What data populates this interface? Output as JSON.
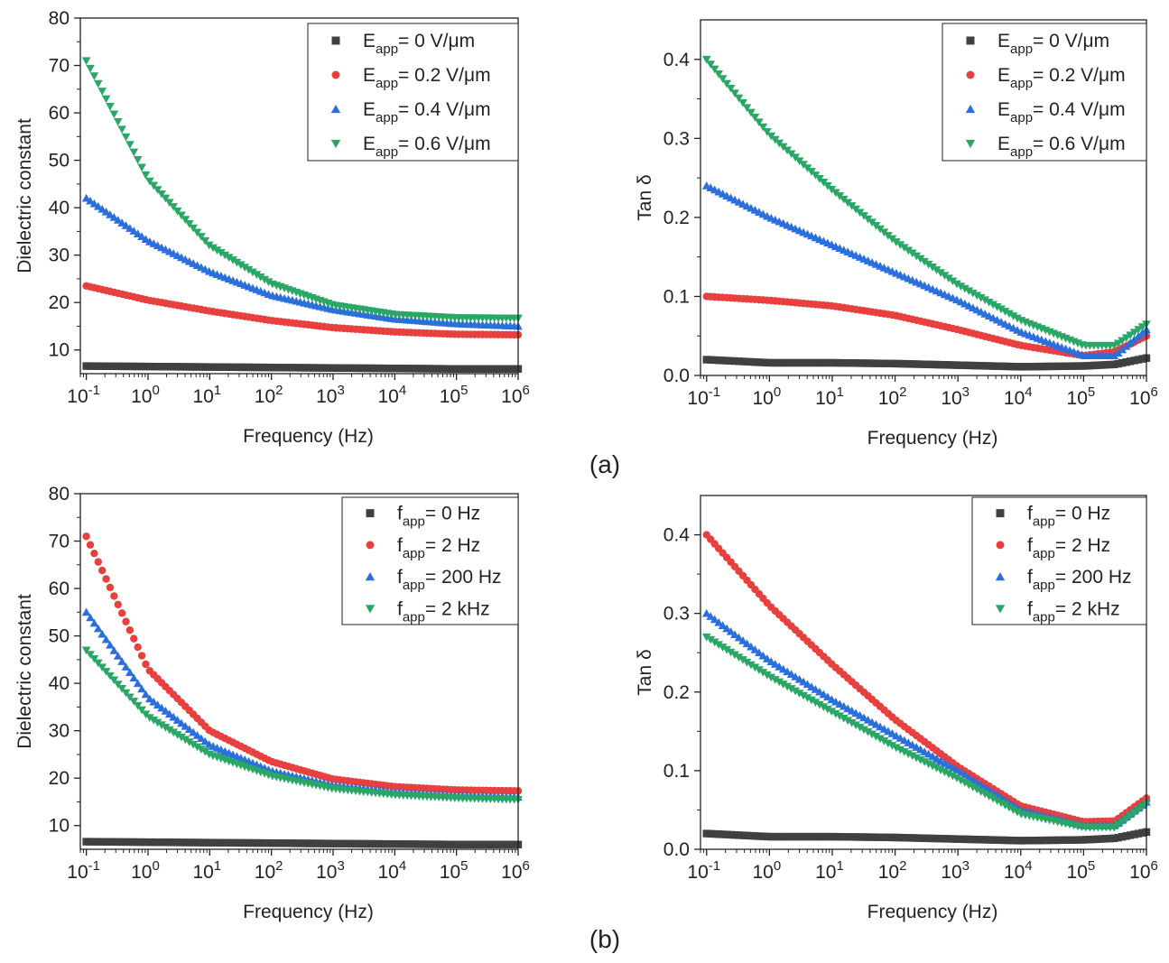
{
  "panel_labels": [
    "(a)",
    "(b)"
  ],
  "chart_data": [
    {
      "id": "a-dielectric",
      "type": "scatter",
      "xscale": "log",
      "xlabel": "Frequency (Hz)",
      "ylabel": "Dielectric constant",
      "xlim": [
        0.08,
        1000000
      ],
      "ylim": [
        5,
        80
      ],
      "xticks": [
        0.1,
        1,
        10,
        100,
        1000,
        10000,
        100000,
        1000000
      ],
      "xtick_labels": [
        "10-1",
        "100",
        "101",
        "102",
        "103",
        "104",
        "105",
        "106"
      ],
      "yticks": [
        10,
        20,
        30,
        40,
        50,
        60,
        70,
        80
      ],
      "ytick_labels": [
        "10",
        "20",
        "30",
        "40",
        "50",
        "60",
        "70",
        "80"
      ],
      "legend_position": "top-right",
      "series": [
        {
          "name": "Eapp= 0 V/μm",
          "legend_main": "E",
          "legend_sub": "app",
          "legend_rest": "= 0 V/μm",
          "marker": "square",
          "color": "#404040",
          "x": [
            0.1,
            1,
            10,
            100,
            1000,
            10000,
            100000,
            1000000
          ],
          "y": [
            6.6,
            6.5,
            6.4,
            6.3,
            6.2,
            6.1,
            6.0,
            6.0
          ]
        },
        {
          "name": "Eapp= 0.2 V/μm",
          "legend_main": "E",
          "legend_sub": "app",
          "legend_rest": "= 0.2 V/μm",
          "marker": "circle",
          "color": "#e8403e",
          "x": [
            0.1,
            1,
            10,
            100,
            1000,
            10000,
            100000,
            1000000
          ],
          "y": [
            23.5,
            20.5,
            18.2,
            16.2,
            14.7,
            13.8,
            13.3,
            13.2
          ]
        },
        {
          "name": "Eapp= 0.4 V/μm",
          "legend_main": "E",
          "legend_sub": "app",
          "legend_rest": "= 0.4 V/μm",
          "marker": "triangle-up",
          "color": "#2a6fdb",
          "x": [
            0.1,
            1,
            10,
            100,
            1000,
            10000,
            100000,
            1000000
          ],
          "y": [
            42,
            33,
            26.5,
            21.5,
            18.5,
            16.5,
            15.5,
            15.0
          ]
        },
        {
          "name": "Eapp= 0.6 V/μm",
          "legend_main": "E",
          "legend_sub": "app",
          "legend_rest": "= 0.6 V/μm",
          "marker": "triangle-down",
          "color": "#2aa667",
          "x": [
            0.1,
            1,
            10,
            100,
            1000,
            10000,
            100000,
            1000000
          ],
          "y": [
            71,
            46,
            32,
            24,
            19.5,
            17.5,
            16.8,
            16.7
          ]
        }
      ]
    },
    {
      "id": "a-tan",
      "type": "scatter",
      "xscale": "log",
      "xlabel": "Frequency (Hz)",
      "ylabel": "Tan δ",
      "xlim": [
        0.08,
        1000000
      ],
      "ylim": [
        0,
        0.45
      ],
      "xticks": [
        0.1,
        1,
        10,
        100,
        1000,
        10000,
        100000,
        1000000
      ],
      "xtick_labels": [
        "10-1",
        "100",
        "101",
        "102",
        "103",
        "104",
        "105",
        "106"
      ],
      "yticks": [
        0.0,
        0.1,
        0.2,
        0.3,
        0.4
      ],
      "ytick_labels": [
        "0.0",
        "0.1",
        "0.2",
        "0.3",
        "0.4"
      ],
      "legend_position": "top-right",
      "series": [
        {
          "name": "Eapp= 0 V/μm",
          "legend_main": "E",
          "legend_sub": "app",
          "legend_rest": "= 0 V/μm",
          "marker": "square",
          "color": "#404040",
          "x": [
            0.1,
            1,
            10,
            100,
            1000,
            10000,
            100000,
            316228,
            1000000
          ],
          "y": [
            0.02,
            0.016,
            0.016,
            0.015,
            0.013,
            0.011,
            0.012,
            0.014,
            0.022
          ]
        },
        {
          "name": "Eapp= 0.2 V/μm",
          "legend_main": "E",
          "legend_sub": "app",
          "legend_rest": "= 0.2 V/μm",
          "marker": "circle",
          "color": "#e8403e",
          "x": [
            0.1,
            1,
            10,
            100,
            1000,
            10000,
            100000,
            316228,
            1000000
          ],
          "y": [
            0.1,
            0.095,
            0.088,
            0.076,
            0.058,
            0.038,
            0.025,
            0.03,
            0.05
          ]
        },
        {
          "name": "Eapp= 0.4 V/μm",
          "legend_main": "E",
          "legend_sub": "app",
          "legend_rest": "= 0.4 V/μm",
          "marker": "triangle-up",
          "color": "#2a6fdb",
          "x": [
            0.1,
            1,
            10,
            100,
            1000,
            10000,
            100000,
            316228,
            1000000
          ],
          "y": [
            0.24,
            0.2,
            0.165,
            0.13,
            0.095,
            0.055,
            0.025,
            0.025,
            0.058
          ]
        },
        {
          "name": "Eapp= 0.6 V/μm",
          "legend_main": "E",
          "legend_sub": "app",
          "legend_rest": "= 0.6 V/μm",
          "marker": "triangle-down",
          "color": "#2aa667",
          "x": [
            0.1,
            1,
            10,
            100,
            1000,
            10000,
            100000,
            316228,
            1000000
          ],
          "y": [
            0.4,
            0.305,
            0.235,
            0.17,
            0.115,
            0.07,
            0.038,
            0.038,
            0.065
          ]
        }
      ]
    },
    {
      "id": "b-dielectric",
      "type": "scatter",
      "xscale": "log",
      "xlabel": "Frequency (Hz)",
      "ylabel": "Dielectric constant",
      "xlim": [
        0.08,
        1000000
      ],
      "ylim": [
        5,
        80
      ],
      "xticks": [
        0.1,
        1,
        10,
        100,
        1000,
        10000,
        100000,
        1000000
      ],
      "xtick_labels": [
        "10-1",
        "100",
        "101",
        "102",
        "103",
        "104",
        "105",
        "106"
      ],
      "yticks": [
        10,
        20,
        30,
        40,
        50,
        60,
        70,
        80
      ],
      "ytick_labels": [
        "10",
        "20",
        "30",
        "40",
        "50",
        "60",
        "70",
        "80"
      ],
      "legend_position": "top-right",
      "series": [
        {
          "name": "fapp= 0 Hz",
          "legend_main": "f",
          "legend_sub": "app",
          "legend_rest": "= 0 Hz",
          "marker": "square",
          "color": "#404040",
          "x": [
            0.1,
            1,
            10,
            100,
            1000,
            10000,
            100000,
            1000000
          ],
          "y": [
            6.6,
            6.5,
            6.4,
            6.3,
            6.2,
            6.1,
            6.0,
            6.0
          ]
        },
        {
          "name": "fapp= 2 Hz",
          "legend_main": "f",
          "legend_sub": "app",
          "legend_rest": "= 2 Hz",
          "marker": "circle",
          "color": "#e8403e",
          "x": [
            0.1,
            1,
            10,
            100,
            1000,
            10000,
            100000,
            1000000
          ],
          "y": [
            71,
            43,
            30,
            23.5,
            19.8,
            18.2,
            17.5,
            17.3
          ]
        },
        {
          "name": "fapp= 200 Hz",
          "legend_main": "f",
          "legend_sub": "app",
          "legend_rest": "= 200 Hz",
          "marker": "triangle-up",
          "color": "#2a6fdb",
          "x": [
            0.1,
            1,
            10,
            100,
            1000,
            10000,
            100000,
            1000000
          ],
          "y": [
            55,
            37,
            27,
            21.5,
            18.5,
            17,
            16.3,
            16
          ]
        },
        {
          "name": "fapp= 2 kHz",
          "legend_main": "f",
          "legend_sub": "app",
          "legend_rest": "= 2 kHz",
          "marker": "triangle-down",
          "color": "#2aa667",
          "x": [
            0.1,
            1,
            10,
            100,
            1000,
            10000,
            100000,
            1000000
          ],
          "y": [
            47,
            33,
            25,
            20.5,
            17.8,
            16.5,
            15.8,
            15.5
          ]
        }
      ]
    },
    {
      "id": "b-tan",
      "type": "scatter",
      "xscale": "log",
      "xlabel": "Frequency (Hz)",
      "ylabel": "Tan δ",
      "xlim": [
        0.08,
        1000000
      ],
      "ylim": [
        0,
        0.45
      ],
      "xticks": [
        0.1,
        1,
        10,
        100,
        1000,
        10000,
        100000,
        1000000
      ],
      "xtick_labels": [
        "10-1",
        "100",
        "101",
        "102",
        "103",
        "104",
        "105",
        "106"
      ],
      "yticks": [
        0.0,
        0.1,
        0.2,
        0.3,
        0.4
      ],
      "ytick_labels": [
        "0.0",
        "0.1",
        "0.2",
        "0.3",
        "0.4"
      ],
      "legend_position": "top-right",
      "series": [
        {
          "name": "fapp= 0 Hz",
          "legend_main": "f",
          "legend_sub": "app",
          "legend_rest": "= 0 Hz",
          "marker": "square",
          "color": "#404040",
          "x": [
            0.1,
            1,
            10,
            100,
            1000,
            10000,
            100000,
            316228,
            1000000
          ],
          "y": [
            0.02,
            0.016,
            0.016,
            0.015,
            0.013,
            0.011,
            0.012,
            0.014,
            0.022
          ]
        },
        {
          "name": "fapp= 2 Hz",
          "legend_main": "f",
          "legend_sub": "app",
          "legend_rest": "= 2 Hz",
          "marker": "circle",
          "color": "#e8403e",
          "x": [
            0.1,
            1,
            10,
            100,
            1000,
            10000,
            100000,
            316228,
            1000000
          ],
          "y": [
            0.4,
            0.31,
            0.235,
            0.165,
            0.105,
            0.055,
            0.035,
            0.036,
            0.065
          ]
        },
        {
          "name": "fapp= 200 Hz",
          "legend_main": "f",
          "legend_sub": "app",
          "legend_rest": "= 200 Hz",
          "marker": "triangle-up",
          "color": "#2a6fdb",
          "x": [
            0.1,
            1,
            10,
            100,
            1000,
            10000,
            100000,
            316228,
            1000000
          ],
          "y": [
            0.3,
            0.24,
            0.19,
            0.145,
            0.1,
            0.05,
            0.03,
            0.03,
            0.06
          ]
        },
        {
          "name": "fapp= 2 kHz",
          "legend_main": "f",
          "legend_sub": "app",
          "legend_rest": "= 2 kHz",
          "marker": "triangle-down",
          "color": "#2aa667",
          "x": [
            0.1,
            1,
            10,
            100,
            1000,
            10000,
            100000,
            316228,
            1000000
          ],
          "y": [
            0.27,
            0.22,
            0.175,
            0.13,
            0.09,
            0.045,
            0.028,
            0.028,
            0.058
          ]
        }
      ]
    }
  ]
}
